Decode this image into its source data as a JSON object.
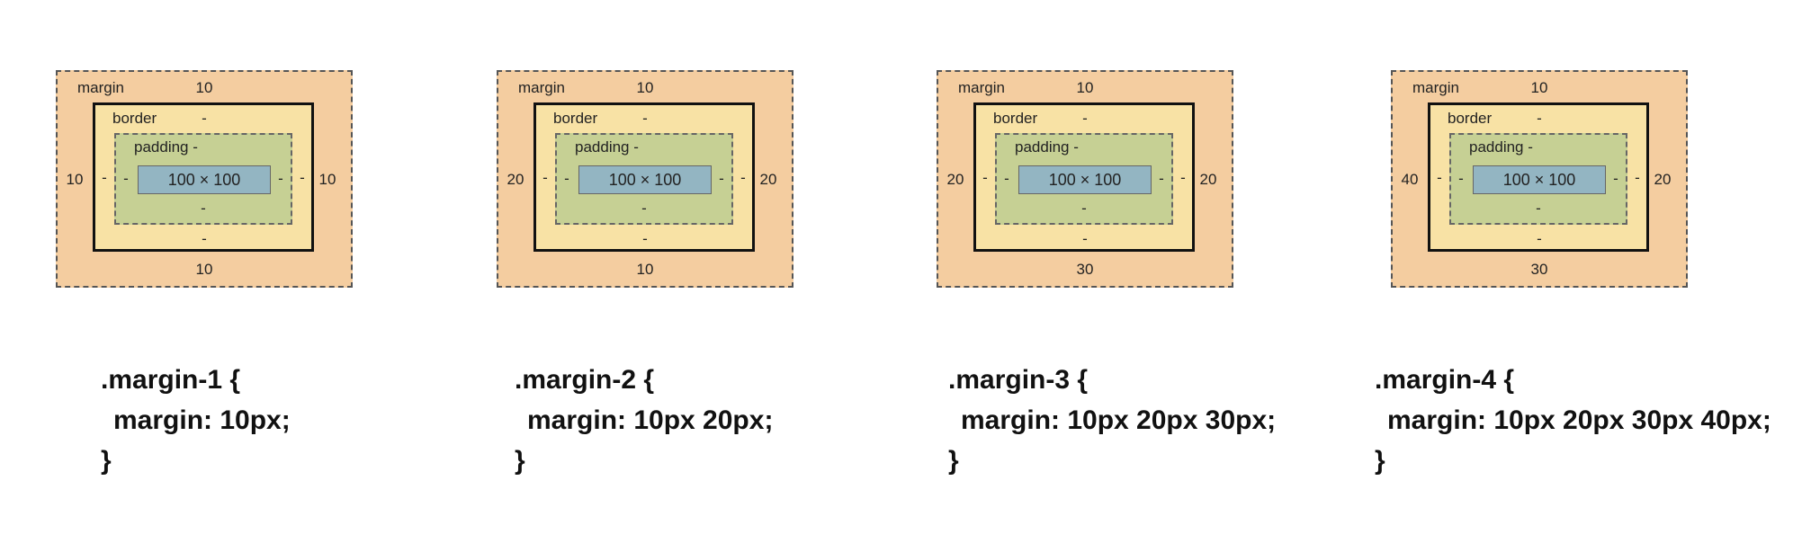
{
  "panels": [
    {
      "labels": {
        "margin_title": "margin",
        "margin_top": "10",
        "margin_right": "10",
        "margin_bottom": "10",
        "margin_left": "10",
        "border_title": "border",
        "border_top": "-",
        "border_right": "-",
        "border_bottom": "-",
        "border_left": "-",
        "padding_title": "padding -",
        "padding_right": "-",
        "padding_bottom": "-",
        "padding_left": "-",
        "content": "100 × 100"
      },
      "code": {
        "selector_line": ".margin-1 {",
        "declaration_line": "margin: 10px;",
        "closing_line": "}"
      }
    },
    {
      "labels": {
        "margin_title": "margin",
        "margin_top": "10",
        "margin_right": "20",
        "margin_bottom": "10",
        "margin_left": "20",
        "border_title": "border",
        "border_top": "-",
        "border_right": "-",
        "border_bottom": "-",
        "border_left": "-",
        "padding_title": "padding -",
        "padding_right": "-",
        "padding_bottom": "-",
        "padding_left": "-",
        "content": "100 × 100"
      },
      "code": {
        "selector_line": ".margin-2 {",
        "declaration_line": "margin: 10px 20px;",
        "closing_line": "}"
      }
    },
    {
      "labels": {
        "margin_title": "margin",
        "margin_top": "10",
        "margin_right": "20",
        "margin_bottom": "30",
        "margin_left": "20",
        "border_title": "border",
        "border_top": "-",
        "border_right": "-",
        "border_bottom": "-",
        "border_left": "-",
        "padding_title": "padding -",
        "padding_right": "-",
        "padding_bottom": "-",
        "padding_left": "-",
        "content": "100 × 100"
      },
      "code": {
        "selector_line": ".margin-3 {",
        "declaration_line": "margin: 10px 20px 30px;",
        "closing_line": "}"
      }
    },
    {
      "labels": {
        "margin_title": "margin",
        "margin_top": "10",
        "margin_right": "20",
        "margin_bottom": "30",
        "margin_left": "40",
        "border_title": "border",
        "border_top": "-",
        "border_right": "-",
        "border_bottom": "-",
        "border_left": "-",
        "padding_title": "padding -",
        "padding_right": "-",
        "padding_bottom": "-",
        "padding_left": "-",
        "content": "100 × 100"
      },
      "code": {
        "selector_line": ".margin-4 {",
        "declaration_line": "margin: 10px 20px 30px 40px;",
        "closing_line": "}"
      }
    }
  ]
}
